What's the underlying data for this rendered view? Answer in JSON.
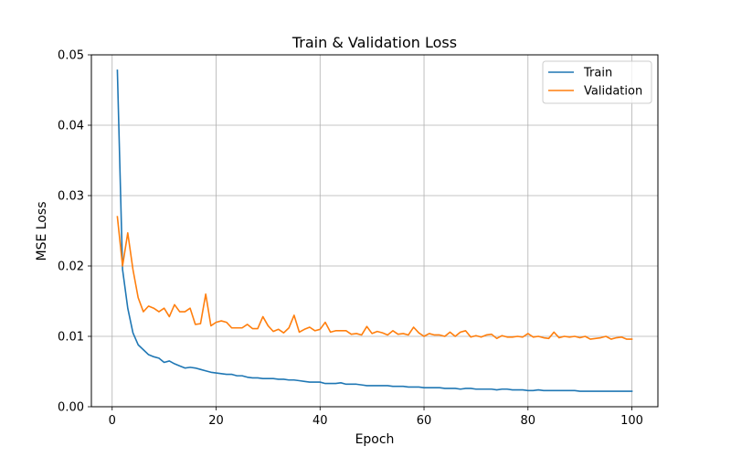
{
  "chart_data": {
    "type": "line",
    "title": "Train & Validation Loss",
    "xlabel": "Epoch",
    "ylabel": "MSE Loss",
    "xlim": [
      -4,
      105
    ],
    "ylim": [
      0,
      0.05
    ],
    "xticks": [
      0,
      20,
      40,
      60,
      80,
      100
    ],
    "yticks": [
      0.0,
      0.01,
      0.02,
      0.03,
      0.04,
      0.05
    ],
    "xtick_labels": [
      "0",
      "20",
      "40",
      "60",
      "80",
      "100"
    ],
    "ytick_labels": [
      "0.00",
      "0.01",
      "0.02",
      "0.03",
      "0.04",
      "0.05"
    ],
    "grid": true,
    "legend_position": "top-right",
    "x": [
      1,
      2,
      3,
      4,
      5,
      6,
      7,
      8,
      9,
      10,
      11,
      12,
      13,
      14,
      15,
      16,
      17,
      18,
      19,
      20,
      21,
      22,
      23,
      24,
      25,
      26,
      27,
      28,
      29,
      30,
      31,
      32,
      33,
      34,
      35,
      36,
      37,
      38,
      39,
      40,
      41,
      42,
      43,
      44,
      45,
      46,
      47,
      48,
      49,
      50,
      51,
      52,
      53,
      54,
      55,
      56,
      57,
      58,
      59,
      60,
      61,
      62,
      63,
      64,
      65,
      66,
      67,
      68,
      69,
      70,
      71,
      72,
      73,
      74,
      75,
      76,
      77,
      78,
      79,
      80,
      81,
      82,
      83,
      84,
      85,
      86,
      87,
      88,
      89,
      90,
      91,
      92,
      93,
      94,
      95,
      96,
      97,
      98,
      99,
      100
    ],
    "series": [
      {
        "name": "Train",
        "color": "#1f77b4",
        "values": [
          0.0478,
          0.0195,
          0.014,
          0.0105,
          0.0088,
          0.0081,
          0.0074,
          0.0071,
          0.0069,
          0.0063,
          0.0065,
          0.0061,
          0.0058,
          0.0055,
          0.0056,
          0.0055,
          0.0053,
          0.0051,
          0.0049,
          0.0048,
          0.0047,
          0.0046,
          0.0046,
          0.0044,
          0.0044,
          0.0042,
          0.0041,
          0.0041,
          0.004,
          0.004,
          0.004,
          0.0039,
          0.0039,
          0.0038,
          0.0038,
          0.0037,
          0.0036,
          0.0035,
          0.0035,
          0.0035,
          0.0033,
          0.0033,
          0.0033,
          0.0034,
          0.0032,
          0.0032,
          0.0032,
          0.0031,
          0.003,
          0.003,
          0.003,
          0.003,
          0.003,
          0.0029,
          0.0029,
          0.0029,
          0.0028,
          0.0028,
          0.0028,
          0.0027,
          0.0027,
          0.0027,
          0.0027,
          0.0026,
          0.0026,
          0.0026,
          0.0025,
          0.0026,
          0.0026,
          0.0025,
          0.0025,
          0.0025,
          0.0025,
          0.0024,
          0.0025,
          0.0025,
          0.0024,
          0.0024,
          0.0024,
          0.0023,
          0.0023,
          0.0024,
          0.0023,
          0.0023,
          0.0023,
          0.0023,
          0.0023,
          0.0023,
          0.0023,
          0.0022,
          0.0022,
          0.0022,
          0.0022,
          0.0022,
          0.0022,
          0.0022,
          0.0022,
          0.0022,
          0.0022,
          0.0022
        ]
      },
      {
        "name": "Validation",
        "color": "#ff7f0e",
        "values": [
          0.027,
          0.02,
          0.0247,
          0.0195,
          0.0155,
          0.0135,
          0.0143,
          0.014,
          0.0135,
          0.014,
          0.0128,
          0.0145,
          0.0135,
          0.0135,
          0.014,
          0.0117,
          0.0118,
          0.016,
          0.0115,
          0.012,
          0.0122,
          0.012,
          0.0112,
          0.0112,
          0.0112,
          0.0117,
          0.0111,
          0.0111,
          0.0128,
          0.0115,
          0.0107,
          0.011,
          0.0105,
          0.0112,
          0.013,
          0.0106,
          0.011,
          0.0113,
          0.0108,
          0.011,
          0.012,
          0.0106,
          0.0108,
          0.0108,
          0.0108,
          0.0103,
          0.0104,
          0.0102,
          0.0114,
          0.0104,
          0.0107,
          0.0105,
          0.0102,
          0.0108,
          0.0103,
          0.0104,
          0.0102,
          0.0113,
          0.0105,
          0.01,
          0.0104,
          0.0102,
          0.0102,
          0.01,
          0.0106,
          0.01,
          0.0106,
          0.0108,
          0.0099,
          0.0101,
          0.0099,
          0.0102,
          0.0103,
          0.0097,
          0.0101,
          0.0099,
          0.0099,
          0.01,
          0.0099,
          0.0104,
          0.0099,
          0.01,
          0.0098,
          0.0097,
          0.0106,
          0.0098,
          0.01,
          0.0099,
          0.01,
          0.0098,
          0.01,
          0.0096,
          0.0097,
          0.0098,
          0.01,
          0.0096,
          0.0098,
          0.0099,
          0.0096,
          0.0096
        ]
      }
    ]
  }
}
